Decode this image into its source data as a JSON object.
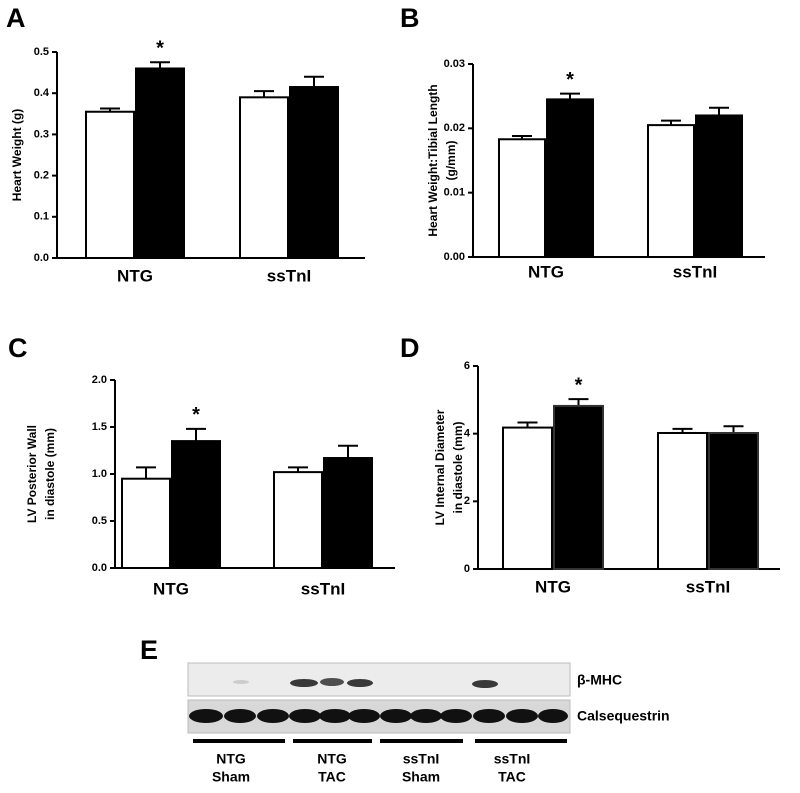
{
  "chart_data": [
    {
      "type": "bar",
      "panel": "A",
      "ylabel": [
        "Heart Weight (g)"
      ],
      "categories": [
        "NTG",
        "ssTnI"
      ],
      "series": [
        {
          "color": "#ffffff",
          "values": [
            0.355,
            0.39
          ],
          "errors": [
            0.008,
            0.015
          ]
        },
        {
          "color": "#000000",
          "values": [
            0.46,
            0.415
          ],
          "errors": [
            0.015,
            0.025
          ]
        }
      ],
      "annotation": "*",
      "ylim": [
        0,
        0.5
      ],
      "yticks": [
        {
          "value": 0,
          "label": "0.0"
        },
        0.1,
        0.2,
        0.3,
        0.4,
        0.5
      ]
    },
    {
      "type": "bar",
      "panel": "B",
      "ylabel": [
        "Heart Weight:Tibial Length",
        "(g/mm)"
      ],
      "categories": [
        "NTG",
        "ssTnI"
      ],
      "series": [
        {
          "color": "#ffffff",
          "values": [
            0.0183,
            0.0205
          ],
          "errors": [
            0.0005,
            0.0007
          ]
        },
        {
          "color": "#000000",
          "values": [
            0.0245,
            0.022
          ],
          "errors": [
            0.0009,
            0.0012
          ]
        }
      ],
      "annotation": "*",
      "ylim": [
        0,
        0.03
      ],
      "yticks": [
        {
          "value": 0,
          "label": "0.00"
        },
        0.01,
        0.02,
        0.03
      ]
    },
    {
      "type": "bar",
      "panel": "C",
      "ylabel": [
        "LV Posterior Wall",
        "in diastole (mm)"
      ],
      "categories": [
        "NTG",
        "ssTnI"
      ],
      "series": [
        {
          "color": "#ffffff",
          "values": [
            0.95,
            1.02
          ],
          "errors": [
            0.12,
            0.05
          ]
        },
        {
          "color": "#000000",
          "values": [
            1.35,
            1.17
          ],
          "errors": [
            0.13,
            0.13
          ]
        }
      ],
      "annotation": "*",
      "ylim": [
        0,
        2
      ],
      "yticks": [
        {
          "value": 0,
          "label": "0.0"
        },
        0.5,
        {
          "value": 1,
          "label": "1.0"
        },
        1.5,
        {
          "value": 2,
          "label": "2.0"
        }
      ]
    },
    {
      "type": "bar",
      "panel": "D",
      "ylabel": [
        "LV Internal Diameter",
        "in diastole (mm)"
      ],
      "categories": [
        "NTG",
        "ssTnI"
      ],
      "series": [
        {
          "color": "#ffffff",
          "values": [
            4.18,
            4.02
          ],
          "errors": [
            0.15,
            0.12
          ]
        },
        {
          "color": "#000000",
          "values": [
            4.82,
            4.02
          ],
          "errors": [
            0.2,
            0.2
          ]
        }
      ],
      "annotation": "*",
      "ylim": [
        0,
        6
      ],
      "yticks": [
        0,
        2,
        4,
        6
      ]
    }
  ],
  "blot": {
    "panel": "E",
    "rows": [
      "β-MHC",
      "Calsequestrin"
    ],
    "groups": [
      [
        "NTG",
        "Sham"
      ],
      [
        "NTG",
        "TAC"
      ],
      [
        "ssTnI",
        "Sham"
      ],
      [
        "ssTnI",
        "TAC"
      ]
    ]
  }
}
